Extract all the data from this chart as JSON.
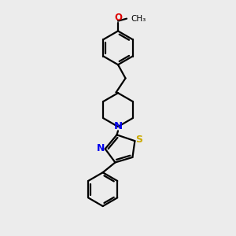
{
  "bg_color": "#ececec",
  "bond_color": "#000000",
  "N_color": "#0000ee",
  "S_color": "#ccaa00",
  "O_color": "#dd0000",
  "line_width": 1.6,
  "fig_width": 3.0,
  "fig_height": 3.0,
  "dpi": 100,
  "xlim": [
    0,
    10
  ],
  "ylim": [
    0,
    10
  ]
}
